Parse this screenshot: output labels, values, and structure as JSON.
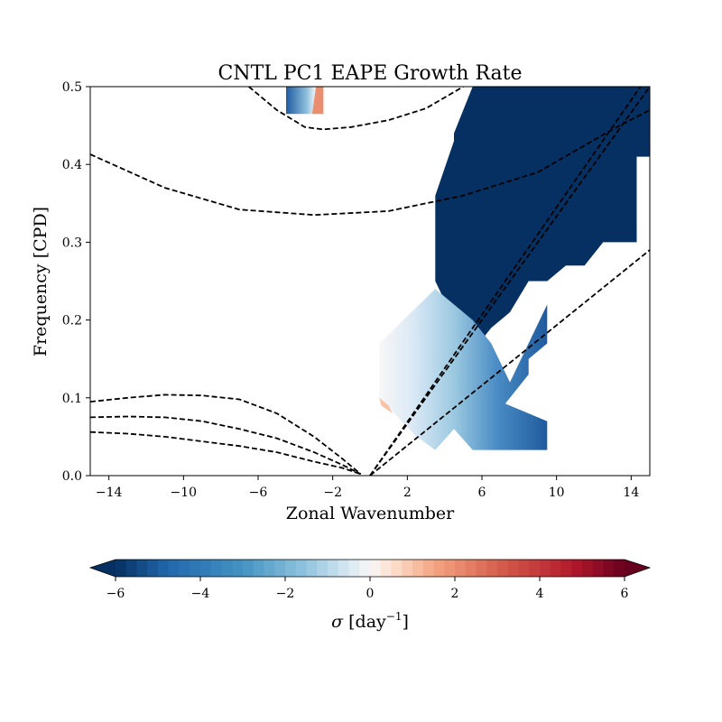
{
  "chart_data": {
    "type": "contour",
    "title": "CNTL PC1 EAPE Growth Rate",
    "xlabel": "Zonal Wavenumber",
    "ylabel": "Frequency [CPD]",
    "xlim": [
      -15,
      15
    ],
    "ylim": [
      0,
      0.5
    ],
    "xticks": [
      -14,
      -10,
      -6,
      -2,
      2,
      6,
      10,
      14
    ],
    "yticks": [
      0.0,
      0.1,
      0.2,
      0.3,
      0.4,
      0.5
    ],
    "xtick_labels": [
      "−14",
      "−10",
      "−6",
      "−2",
      "2",
      "6",
      "10",
      "14"
    ],
    "ytick_labels": [
      "0.0",
      "0.1",
      "0.2",
      "0.3",
      "0.4",
      "0.5"
    ],
    "colorbar": {
      "label_symbol": "σ",
      "label_unit": " [day",
      "label_exp": "−1",
      "label_close": "]",
      "range": [
        -6,
        6
      ],
      "ticks": [
        -6,
        -4,
        -2,
        0,
        2,
        4,
        6
      ],
      "tick_labels": [
        "−6",
        "−4",
        "−2",
        "0",
        "2",
        "4",
        "6"
      ],
      "colormap": "RdBu_r",
      "extend": "both",
      "levels": 49
    },
    "filled_regions": [
      {
        "name": "main-negative-growth",
        "value": -6,
        "polygon": [
          [
            3.5,
            0.36
          ],
          [
            4.5,
            0.43
          ],
          [
            4.5,
            0.44
          ],
          [
            5.5,
            0.5
          ],
          [
            15,
            0.5
          ],
          [
            15,
            0.41
          ],
          [
            14.3,
            0.41
          ],
          [
            14.3,
            0.3
          ],
          [
            12.5,
            0.3
          ],
          [
            11.5,
            0.27
          ],
          [
            10.5,
            0.27
          ],
          [
            9.5,
            0.25
          ],
          [
            8.5,
            0.25
          ],
          [
            7.5,
            0.21
          ],
          [
            6.5,
            0.19
          ],
          [
            5.5,
            0.16
          ],
          [
            4.5,
            0.2
          ],
          [
            3.5,
            0.25
          ]
        ]
      },
      {
        "name": "top-strip-blue",
        "value": -4,
        "polygon": [
          [
            -4.5,
            0.5
          ],
          [
            -2.5,
            0.5
          ],
          [
            -2.5,
            0.465
          ],
          [
            -4.5,
            0.465
          ]
        ]
      },
      {
        "name": "top-strip-red",
        "value": 2,
        "polygon": [
          [
            -2.9,
            0.5
          ],
          [
            -2.5,
            0.5
          ],
          [
            -2.5,
            0.465
          ],
          [
            -3.1,
            0.465
          ]
        ]
      },
      {
        "name": "lower-gradient-blue",
        "value": -3,
        "polygon": [
          [
            0.5,
            0.17
          ],
          [
            3.5,
            0.24
          ],
          [
            5.5,
            0.2
          ],
          [
            6.5,
            0.17
          ],
          [
            7.5,
            0.12
          ],
          [
            9.5,
            0.22
          ],
          [
            9.5,
            0.17
          ],
          [
            8.5,
            0.15
          ],
          [
            8.5,
            0.13
          ],
          [
            6.5,
            0.07
          ],
          [
            6.5,
            0.1
          ],
          [
            6.5,
            0.1
          ],
          [
            9.5,
            0.07
          ],
          [
            9.5,
            0.033
          ],
          [
            5.5,
            0.033
          ],
          [
            4.5,
            0.06
          ],
          [
            3.5,
            0.033
          ],
          [
            2.5,
            0.05
          ],
          [
            0.5,
            0.1
          ]
        ]
      },
      {
        "name": "lower-red-fringe",
        "value": 1,
        "polygon": [
          [
            0.5,
            0.1
          ],
          [
            1.0,
            0.09
          ],
          [
            1.2,
            0.08
          ],
          [
            0.6,
            0.09
          ]
        ]
      }
    ],
    "curves": [
      {
        "name": "kelvin-n0",
        "style": "dashed",
        "points": [
          [
            0,
            0
          ],
          [
            15,
            0.5
          ]
        ]
      },
      {
        "name": "kelvin-n1",
        "style": "dashed",
        "points": [
          [
            0,
            0
          ],
          [
            14.5,
            0.5
          ]
        ]
      },
      {
        "name": "kelvin-n2",
        "style": "dashed",
        "points": [
          [
            0,
            0
          ],
          [
            15,
            0.29
          ]
        ]
      },
      {
        "name": "igw-upper",
        "style": "dashed",
        "points": [
          [
            -6.5,
            0.5
          ],
          [
            -5,
            0.47
          ],
          [
            -3.5,
            0.448
          ],
          [
            -2.5,
            0.445
          ],
          [
            -1,
            0.448
          ],
          [
            1,
            0.457
          ],
          [
            3,
            0.472
          ],
          [
            5,
            0.5
          ]
        ]
      },
      {
        "name": "igw-lower",
        "style": "dashed",
        "points": [
          [
            -15,
            0.413
          ],
          [
            -11,
            0.37
          ],
          [
            -7,
            0.342
          ],
          [
            -3,
            0.335
          ],
          [
            1,
            0.34
          ],
          [
            5,
            0.36
          ],
          [
            9,
            0.39
          ],
          [
            13,
            0.445
          ],
          [
            15,
            0.47
          ]
        ]
      },
      {
        "name": "mrg-n1",
        "style": "dashed",
        "points": [
          [
            -15,
            0.095
          ],
          [
            -13,
            0.1
          ],
          [
            -11,
            0.104
          ],
          [
            -9,
            0.103
          ],
          [
            -7,
            0.098
          ],
          [
            -5,
            0.08
          ],
          [
            -3,
            0.05
          ],
          [
            -1.5,
            0.022
          ],
          [
            -0.5,
            0.002
          ]
        ]
      },
      {
        "name": "mrg-n2",
        "style": "dashed",
        "points": [
          [
            -15,
            0.075
          ],
          [
            -13,
            0.076
          ],
          [
            -11,
            0.075
          ],
          [
            -9,
            0.07
          ],
          [
            -7,
            0.06
          ],
          [
            -5,
            0.048
          ],
          [
            -3,
            0.03
          ],
          [
            -1.5,
            0.014
          ],
          [
            -0.5,
            0.002
          ]
        ]
      },
      {
        "name": "rossby-n1",
        "style": "dashed",
        "points": [
          [
            -15,
            0.056
          ],
          [
            -13,
            0.054
          ],
          [
            -11,
            0.05
          ],
          [
            -9,
            0.044
          ],
          [
            -7,
            0.038
          ],
          [
            -5,
            0.03
          ],
          [
            -3,
            0.018
          ],
          [
            -1.5,
            0.01
          ],
          [
            -0.5,
            0.002
          ]
        ]
      }
    ],
    "grid": false,
    "legend": "none"
  },
  "colors": {
    "deep_blue": "#083469",
    "mid_blue": "#3b7dba",
    "light_blue": "#c8ddef",
    "white": "#f7f7f7",
    "light_red": "#f7c7ae",
    "deep_red": "#67001f"
  }
}
